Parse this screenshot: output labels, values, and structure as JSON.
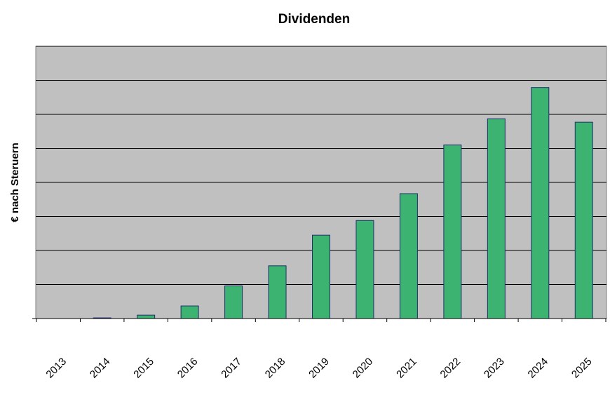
{
  "chart_data": {
    "type": "bar",
    "title": "Dividenden",
    "xlabel": "",
    "ylabel": "€ nach Steruern",
    "categories": [
      "2013",
      "2014",
      "2015",
      "2016",
      "2017",
      "2018",
      "2019",
      "2020",
      "2021",
      "2022",
      "2023",
      "2024",
      "2025"
    ],
    "values": [
      0,
      0.02,
      0.1,
      0.37,
      0.96,
      1.55,
      2.45,
      2.88,
      3.67,
      5.1,
      5.87,
      6.79,
      5.77
    ],
    "ylim": [
      0,
      8
    ],
    "y_ticks_labeled": false,
    "grid": true,
    "legend": "none",
    "colors": {
      "bar_fill": "#3cb371",
      "bar_stroke": "#1f2f6a",
      "plot_bg": "#c0c0c0",
      "grid": "#000000"
    }
  }
}
